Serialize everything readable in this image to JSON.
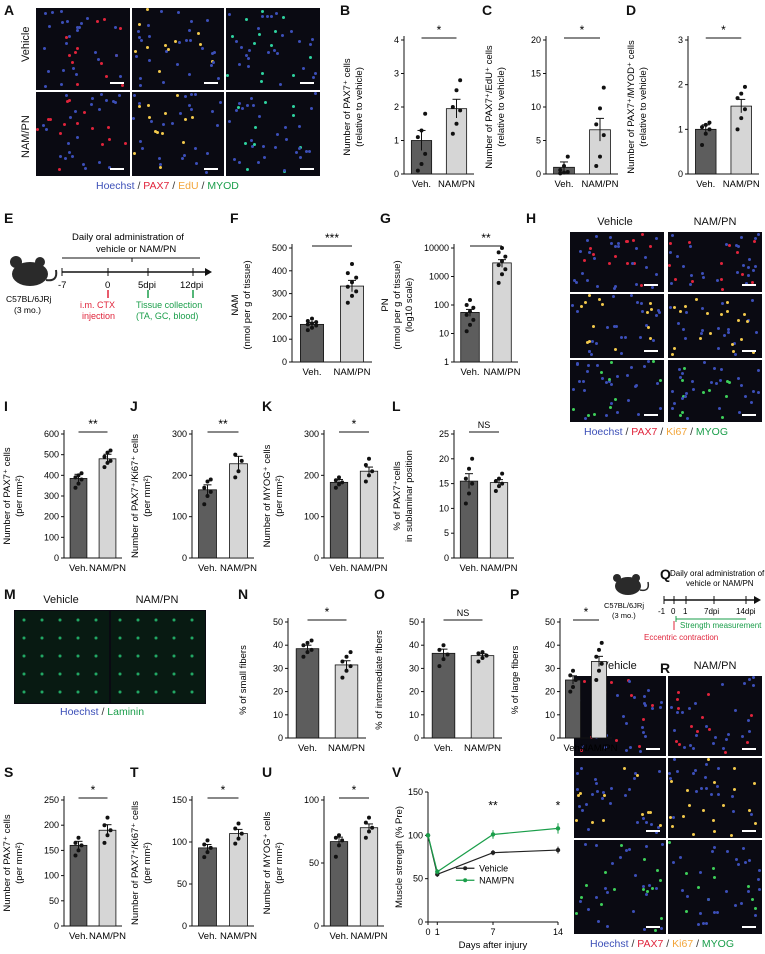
{
  "panel_letters": [
    "A",
    "B",
    "C",
    "D",
    "E",
    "F",
    "G",
    "H",
    "I",
    "J",
    "K",
    "L",
    "M",
    "N",
    "O",
    "P",
    "Q",
    "R",
    "S",
    "T",
    "U",
    "V"
  ],
  "panelA": {
    "row_labels": [
      "Vehicle",
      "NAM/PN"
    ],
    "legend": [
      {
        "text": "Hoechst",
        "color": "#3c4fb8"
      },
      {
        "text": " / ",
        "color": "#333333"
      },
      {
        "text": "PAX7",
        "color": "#e0243b"
      },
      {
        "text": " / ",
        "color": "#333333"
      },
      {
        "text": "EdU",
        "color": "#f2a53a"
      },
      {
        "text": " / ",
        "color": "#333333"
      },
      {
        "text": "MYOD",
        "color": "#1a9e4a"
      }
    ]
  },
  "panelE": {
    "title_line1": "Daily oral administration of",
    "title_line2": "vehicle or NAM/PN",
    "ticks": [
      "-7",
      "0",
      "5dpi",
      "12dpi"
    ],
    "mouse_label": "C57BL/6JRj",
    "mouse_age": "(3 mo.)",
    "injection_line1": "i.m. CTX",
    "injection_line2": "injection",
    "collection_line1": "Tissue collection",
    "collection_line2": "(TA, GC, blood)"
  },
  "panelH": {
    "col_labels": [
      "Vehicle",
      "NAM/PN"
    ],
    "legend": [
      {
        "text": "Hoechst",
        "color": "#3c4fb8"
      },
      {
        "text": " / ",
        "color": "#333333"
      },
      {
        "text": "PAX7",
        "color": "#e0243b"
      },
      {
        "text": " / ",
        "color": "#333333"
      },
      {
        "text": "Ki67",
        "color": "#f2a53a"
      },
      {
        "text": " / ",
        "color": "#333333"
      },
      {
        "text": "MYOG",
        "color": "#1a9e4a"
      }
    ]
  },
  "panelM": {
    "col_labels": [
      "Vehicle",
      "NAM/PN"
    ],
    "legend": [
      {
        "text": "Hoechst",
        "color": "#3c4fb8"
      },
      {
        "text": " / ",
        "color": "#333333"
      },
      {
        "text": "Laminin",
        "color": "#1a9e4a"
      }
    ]
  },
  "panelQ": {
    "title_line1": "Daily oral administration of",
    "title_line2": "vehicle or NAM/PN",
    "ticks": [
      "-1",
      "0",
      "1",
      "7dpi",
      "14dpi"
    ],
    "mouse_label": "C57BL/6JRj",
    "mouse_age": "(3 mo.)",
    "strength": "Strength measurement",
    "eccentric": "Eccentric contraction"
  },
  "panelR": {
    "col_labels": [
      "Vehicle",
      "NAM/PN"
    ],
    "legend": [
      {
        "text": "Hoechst",
        "color": "#3c4fb8"
      },
      {
        "text": " / ",
        "color": "#333333"
      },
      {
        "text": "PAX7",
        "color": "#e0243b"
      },
      {
        "text": " / ",
        "color": "#333333"
      },
      {
        "text": "Ki67",
        "color": "#f2a53a"
      },
      {
        "text": " / ",
        "color": "#333333"
      },
      {
        "text": "MYOG",
        "color": "#1a9e4a"
      }
    ]
  },
  "colors": {
    "vehicle_bar": "#5d5d5d",
    "nampn_bar": "#d6d6d6",
    "nampn_line": "#1a9e4a",
    "vehicle_line": "#222222"
  },
  "chart_data": [
    {
      "id": "B",
      "type": "bar",
      "categories": [
        "Veh.",
        "NAM/PN"
      ],
      "values": [
        1.0,
        1.95
      ],
      "errors": [
        0.3,
        0.28
      ],
      "ylabel_lines": [
        "Number of PAX7⁺ cells",
        "(relative to vehicle)"
      ],
      "ylim": [
        0,
        4
      ],
      "yticks": [
        "0",
        "1",
        "2",
        "3",
        "4"
      ],
      "sig": "*",
      "points": [
        [
          0.1,
          0.3,
          0.6,
          1.1,
          1.3,
          1.8
        ],
        [
          1.2,
          1.5,
          1.9,
          2.0,
          2.5,
          2.8
        ]
      ]
    },
    {
      "id": "C",
      "type": "bar",
      "categories": [
        "Veh.",
        "NAM/PN"
      ],
      "values": [
        1.0,
        6.6
      ],
      "errors": [
        0.8,
        1.7
      ],
      "ylabel_lines": [
        "Number of PAX7⁺/EdU⁺ cells",
        "(relative to vehicle)"
      ],
      "ylim": [
        0,
        20
      ],
      "yticks": [
        "0",
        "5",
        "10",
        "15",
        "20"
      ],
      "sig": "*",
      "points": [
        [
          0.1,
          0.2,
          0.3,
          0.6,
          1.2,
          2.6
        ],
        [
          1.2,
          2.6,
          5.8,
          7.4,
          9.8,
          12.9
        ]
      ]
    },
    {
      "id": "D",
      "type": "bar",
      "categories": [
        "Veh.",
        "NAM/PN"
      ],
      "values": [
        1.0,
        1.52
      ],
      "errors": [
        0.1,
        0.15
      ],
      "ylabel_lines": [
        "Number of PAX7⁺/MYOD⁺ cells",
        "(relative to vehicle)"
      ],
      "ylim": [
        0,
        3
      ],
      "yticks": [
        "0",
        "1",
        "2",
        "3"
      ],
      "sig": "*",
      "points": [
        [
          0.65,
          0.9,
          1.0,
          1.05,
          1.1,
          1.15
        ],
        [
          1.0,
          1.25,
          1.45,
          1.7,
          1.8,
          1.95
        ]
      ]
    },
    {
      "id": "F",
      "type": "bar",
      "categories": [
        "Veh.",
        "NAM/PN"
      ],
      "values": [
        165,
        333
      ],
      "errors": [
        8,
        25
      ],
      "ylabel_lines": [
        "NAM",
        "(nmol per g of tissue)"
      ],
      "ylim": [
        0,
        500
      ],
      "yticks": [
        "0",
        "100",
        "200",
        "300",
        "400",
        "500"
      ],
      "sig": "***",
      "points": [
        [
          140,
          150,
          160,
          165,
          170,
          175,
          180,
          190
        ],
        [
          260,
          290,
          310,
          330,
          350,
          370,
          390,
          430
        ]
      ]
    },
    {
      "id": "G",
      "type": "bar",
      "log": true,
      "categories": [
        "Veh.",
        "NAM/PN"
      ],
      "values": [
        55,
        3000
      ],
      "errors": [
        15,
        900
      ],
      "ylabel_lines": [
        "PN",
        "(nmol per g of tissue)",
        "(log10 scale)"
      ],
      "ylim": [
        1,
        10000
      ],
      "yticks": [
        "1",
        "10",
        "100",
        "1000",
        "10000"
      ],
      "sig": "**",
      "points": [
        [
          12,
          20,
          30,
          45,
          60,
          80,
          100,
          150
        ],
        [
          600,
          1200,
          1800,
          2500,
          3500,
          5000,
          7000,
          10000
        ]
      ]
    },
    {
      "id": "I",
      "type": "bar",
      "categories": [
        "Veh.",
        "NAM/PN"
      ],
      "values": [
        385,
        480
      ],
      "errors": [
        20,
        22
      ],
      "ylabel_lines": [
        "Number of PAX7⁺ cells",
        "(per mm²)"
      ],
      "ylim": [
        0,
        600
      ],
      "yticks": [
        "0",
        "100",
        "200",
        "300",
        "400",
        "500",
        "600"
      ],
      "sig": "**",
      "points": [
        [
          340,
          360,
          380,
          390,
          400,
          410
        ],
        [
          440,
          460,
          470,
          490,
          510,
          520
        ]
      ]
    },
    {
      "id": "J",
      "type": "bar",
      "categories": [
        "Veh.",
        "NAM/PN"
      ],
      "values": [
        165,
        228
      ],
      "errors": [
        12,
        18
      ],
      "ylabel_lines": [
        "Number of PAX7⁺/Ki67⁺ cells",
        "(per mm²)"
      ],
      "ylim": [
        0,
        300
      ],
      "yticks": [
        "0",
        "100",
        "200",
        "300"
      ],
      "sig": "**",
      "points": [
        [
          130,
          150,
          160,
          170,
          185,
          190
        ],
        [
          195,
          210,
          235,
          250
        ]
      ]
    },
    {
      "id": "K",
      "type": "bar",
      "categories": [
        "Veh.",
        "NAM/PN"
      ],
      "values": [
        183,
        210
      ],
      "errors": [
        7,
        10
      ],
      "ylabel_lines": [
        "Number of MYOG⁺ cells",
        "(per mm²)"
      ],
      "ylim": [
        0,
        300
      ],
      "yticks": [
        "0",
        "100",
        "200",
        "300"
      ],
      "sig": "*",
      "points": [
        [
          170,
          178,
          183,
          188,
          195
        ],
        [
          185,
          200,
          210,
          225,
          240
        ]
      ]
    },
    {
      "id": "L",
      "type": "bar",
      "categories": [
        "Veh.",
        "NAM/PN"
      ],
      "values": [
        15.5,
        15.2
      ],
      "errors": [
        1.5,
        0.6
      ],
      "ylabel_lines": [
        "% of PAX7⁺cells",
        "in sublaminar position"
      ],
      "ylim": [
        0,
        25
      ],
      "yticks": [
        "0",
        "5",
        "10",
        "15",
        "20",
        "25"
      ],
      "sig": "NS",
      "points": [
        [
          11,
          13,
          15,
          16,
          18,
          20
        ],
        [
          13.5,
          14.5,
          15,
          15.5,
          16,
          17
        ]
      ]
    },
    {
      "id": "N",
      "type": "bar",
      "categories": [
        "Veh.",
        "NAM/PN"
      ],
      "values": [
        38.5,
        31.5
      ],
      "errors": [
        1.5,
        1.8
      ],
      "ylabel_lines": [
        "% of small fibers"
      ],
      "ylim": [
        0,
        50
      ],
      "yticks": [
        "0",
        "10",
        "20",
        "30",
        "40",
        "50"
      ],
      "sig": "*",
      "points": [
        [
          35,
          37,
          38,
          40,
          41,
          42
        ],
        [
          26,
          29,
          31,
          33,
          35,
          37
        ]
      ]
    },
    {
      "id": "O",
      "type": "bar",
      "categories": [
        "Veh.",
        "NAM/PN"
      ],
      "values": [
        36.5,
        35.5
      ],
      "errors": [
        1.8,
        0.8
      ],
      "ylabel_lines": [
        "% of intermediate fibers"
      ],
      "ylim": [
        0,
        50
      ],
      "yticks": [
        "0",
        "10",
        "20",
        "30",
        "40",
        "50"
      ],
      "sig": "NS",
      "points": [
        [
          31,
          34,
          36,
          38,
          40
        ],
        [
          33,
          34.5,
          35.5,
          36.5,
          37
        ]
      ]
    },
    {
      "id": "P",
      "type": "bar",
      "categories": [
        "Veh.",
        "NAM/PN"
      ],
      "values": [
        25,
        33
      ],
      "errors": [
        1.8,
        2.2
      ],
      "ylabel_lines": [
        "% of large fibers"
      ],
      "ylim": [
        0,
        50
      ],
      "yticks": [
        "0",
        "10",
        "20",
        "30",
        "40",
        "50"
      ],
      "sig": "*",
      "points": [
        [
          20,
          22,
          25,
          27,
          29
        ],
        [
          25,
          29,
          32,
          35,
          38,
          41
        ]
      ]
    },
    {
      "id": "S",
      "type": "bar",
      "categories": [
        "Veh.",
        "NAM/PN"
      ],
      "values": [
        160,
        190
      ],
      "errors": [
        8,
        11
      ],
      "ylabel_lines": [
        "Number of PAX7⁺ cells",
        "(per mm²)"
      ],
      "ylim": [
        0,
        250
      ],
      "yticks": [
        "0",
        "50",
        "100",
        "150",
        "200",
        "250"
      ],
      "sig": "*",
      "points": [
        [
          140,
          150,
          160,
          165,
          175
        ],
        [
          165,
          180,
          190,
          200,
          215
        ]
      ]
    },
    {
      "id": "T",
      "type": "bar",
      "categories": [
        "Veh.",
        "NAM/PN"
      ],
      "values": [
        93,
        110
      ],
      "errors": [
        4,
        5
      ],
      "ylabel_lines": [
        "Number of PAX7⁺/Ki67⁺ cells",
        "(per mm²)"
      ],
      "ylim": [
        0,
        150
      ],
      "yticks": [
        "0",
        "50",
        "100",
        "150"
      ],
      "sig": "*",
      "points": [
        [
          82,
          88,
          93,
          97,
          102
        ],
        [
          98,
          104,
          110,
          116,
          122
        ]
      ]
    },
    {
      "id": "U",
      "type": "bar",
      "categories": [
        "Veh.",
        "NAM/PN"
      ],
      "values": [
        67,
        78
      ],
      "errors": [
        3.5,
        3
      ],
      "ylabel_lines": [
        "Number of MYOG⁺ cells",
        "(per mm²)"
      ],
      "ylim": [
        0,
        100
      ],
      "yticks": [
        "0",
        "50",
        "100"
      ],
      "sig": "*",
      "points": [
        [
          55,
          64,
          68,
          70,
          72
        ],
        [
          70,
          75,
          78,
          82,
          86
        ]
      ]
    },
    {
      "id": "V",
      "type": "line",
      "x": [
        0,
        1,
        7,
        14
      ],
      "series": [
        {
          "name": "Vehicle",
          "values": [
            100,
            55,
            80,
            83
          ],
          "errors": [
            0,
            3,
            3,
            4
          ]
        },
        {
          "name": "NAM/PN",
          "values": [
            100,
            58,
            101,
            108
          ],
          "errors": [
            0,
            3,
            5,
            6
          ]
        }
      ],
      "xlabel": "Days after injury",
      "ylabel_lines": [
        "Muscle strength (% Pre)"
      ],
      "xticks": [
        "0",
        "1",
        "7",
        "14"
      ],
      "yticks": [
        "0",
        "50",
        "100",
        "150"
      ],
      "ylim": [
        0,
        150
      ],
      "xlim": [
        0,
        14
      ],
      "sig_labels": [
        {
          "x": 7,
          "text": "**"
        },
        {
          "x": 14,
          "text": "*"
        }
      ]
    }
  ]
}
